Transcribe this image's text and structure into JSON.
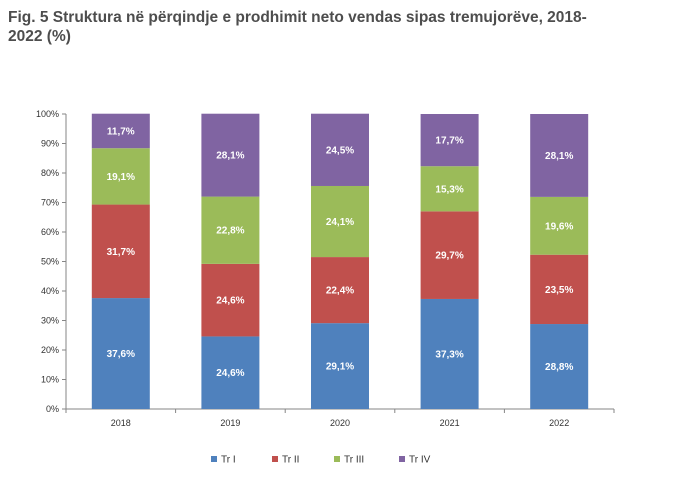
{
  "title": "Fig. 5 Struktura në përqindje e prodhimit neto vendas sipas tremujorëve, 2018-2022 (%)",
  "chart_data": {
    "type": "bar",
    "stacked": true,
    "categories": [
      "2018",
      "2019",
      "2020",
      "2021",
      "2022"
    ],
    "series": [
      {
        "name": "Tr I",
        "color": "#4f81bd",
        "values": [
          37.6,
          24.6,
          29.1,
          37.3,
          28.8
        ],
        "labels": [
          "37,6%",
          "24,6%",
          "29,1%",
          "37,3%",
          "28,8%"
        ]
      },
      {
        "name": "Tr II",
        "color": "#c0504d",
        "values": [
          31.7,
          24.6,
          22.4,
          29.7,
          23.5
        ],
        "labels": [
          "31,7%",
          "24,6%",
          "22,4%",
          "29,7%",
          "23,5%"
        ]
      },
      {
        "name": "Tr III",
        "color": "#9bbb59",
        "values": [
          19.1,
          22.8,
          24.1,
          15.3,
          19.6
        ],
        "labels": [
          "19,1%",
          "22,8%",
          "24,1%",
          "15,3%",
          "19,6%"
        ]
      },
      {
        "name": "Tr IV",
        "color": "#8064a2",
        "values": [
          11.7,
          28.1,
          24.5,
          17.7,
          28.1
        ],
        "labels": [
          "11,7%",
          "28,1%",
          "24,5%",
          "17,7%",
          "28,1%"
        ]
      }
    ],
    "y_ticks": [
      "0%",
      "10%",
      "20%",
      "30%",
      "40%",
      "50%",
      "60%",
      "70%",
      "80%",
      "90%",
      "100%"
    ],
    "ylim": [
      0,
      100
    ],
    "grid": false,
    "legend_position": "bottom"
  }
}
